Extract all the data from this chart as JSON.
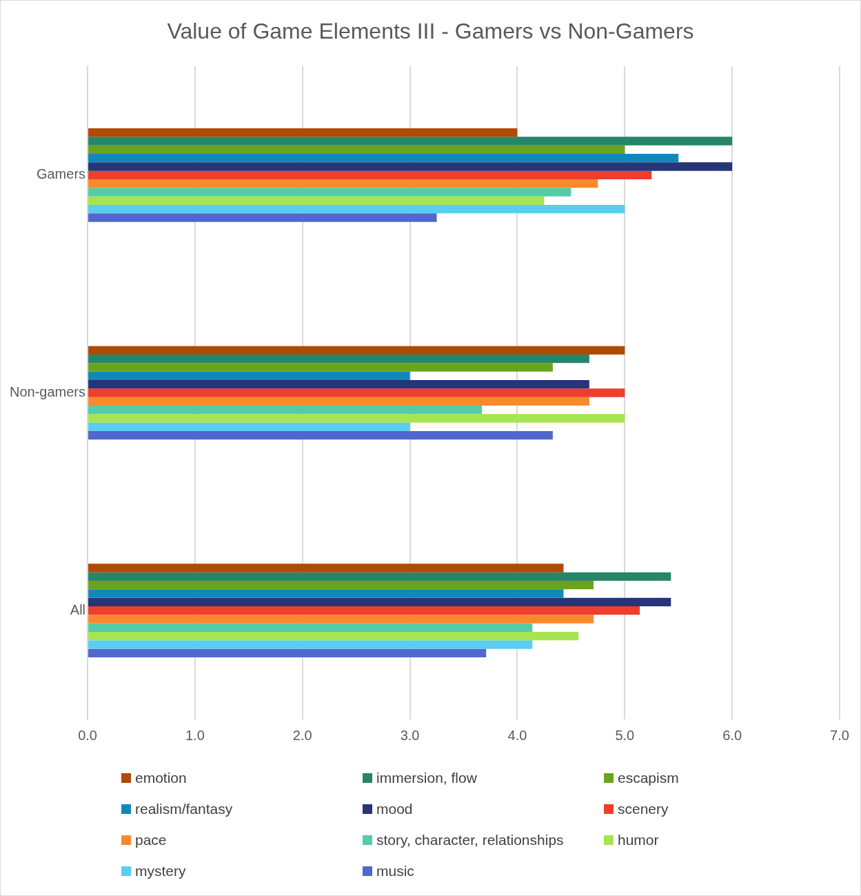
{
  "chart_data": {
    "type": "bar",
    "orientation": "horizontal",
    "title": "Value of Game Elements III - Gamers vs Non-Gamers",
    "categories": [
      "Gamers",
      "Non-gamers",
      "All"
    ],
    "series": [
      {
        "name": "emotion",
        "color": "#b04a05",
        "values": [
          4.0,
          5.0,
          4.43
        ]
      },
      {
        "name": "immersion, flow",
        "color": "#26866a",
        "values": [
          6.0,
          4.67,
          5.43
        ]
      },
      {
        "name": "escapism",
        "color": "#6aa31d",
        "values": [
          5.0,
          4.33,
          4.71
        ]
      },
      {
        "name": "realism/fantasy",
        "color": "#1287b8",
        "values": [
          5.5,
          3.0,
          4.43
        ]
      },
      {
        "name": "mood",
        "color": "#263478",
        "values": [
          6.0,
          4.67,
          5.43
        ]
      },
      {
        "name": "scenery",
        "color": "#ee3e2d",
        "values": [
          5.25,
          5.0,
          5.14
        ]
      },
      {
        "name": "pace",
        "color": "#f98a2c",
        "values": [
          4.75,
          4.67,
          4.71
        ]
      },
      {
        "name": "story, character, relationships",
        "color": "#55cca8",
        "values": [
          4.5,
          3.67,
          4.14
        ]
      },
      {
        "name": "humor",
        "color": "#a6e452",
        "values": [
          4.25,
          5.0,
          4.57
        ]
      },
      {
        "name": "mystery",
        "color": "#5bcdf0",
        "values": [
          5.0,
          3.0,
          4.14
        ]
      },
      {
        "name": "music",
        "color": "#5067cc",
        "values": [
          3.25,
          4.33,
          3.71
        ]
      }
    ],
    "xlim": [
      0,
      7
    ],
    "xticks": [
      {
        "value": 0,
        "label": "0.0"
      },
      {
        "value": 1,
        "label": "1.0"
      },
      {
        "value": 2,
        "label": "2.0"
      },
      {
        "value": 3,
        "label": "3.0"
      },
      {
        "value": 4,
        "label": "4.0"
      },
      {
        "value": 5,
        "label": "5.0"
      },
      {
        "value": 6,
        "label": "6.0"
      },
      {
        "value": 7,
        "label": "7.0"
      }
    ],
    "grid": "x",
    "legend": "bottom"
  }
}
